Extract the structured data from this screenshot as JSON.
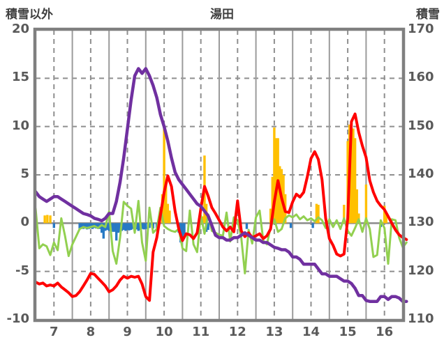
{
  "header": {
    "left_axis_title": "積雪以外",
    "title": "湯田",
    "right_axis_title": "積雪"
  },
  "chart_data": {
    "type": "line+bar",
    "title": "湯田",
    "left_axis": {
      "label": "積雪以外",
      "min": -10,
      "max": 20,
      "ticks": [
        20,
        15,
        10,
        5,
        0,
        -5,
        -10
      ]
    },
    "right_axis": {
      "label": "積雪",
      "min": 110,
      "max": 170,
      "ticks": [
        170,
        160,
        150,
        140,
        130,
        120,
        110
      ]
    },
    "x_axis": {
      "min": 6.5,
      "max": 16.5,
      "tick_labels": [
        7,
        8,
        9,
        10,
        11,
        12,
        13,
        14,
        15,
        16
      ],
      "solid_gridlines": [
        7.5,
        8.5,
        9.5,
        10.5,
        11.5,
        12.5,
        13.5,
        14.5,
        15.5
      ],
      "dashed_gridlines": [
        7,
        8,
        9,
        10,
        11,
        12,
        13,
        14,
        15,
        16
      ]
    },
    "grid": {
      "dashed_h_levels": [
        15,
        10,
        5,
        -5
      ],
      "zero_line": 0
    },
    "colors": {
      "purple": "#7030a0",
      "red": "#ff0000",
      "green": "#92d050",
      "orange": "#ffc000",
      "blue": "#2779c4",
      "frame": "#7f7f7f",
      "grid": "#8f8f8f",
      "text": "#595959"
    },
    "x_start": 6.5,
    "x_step": 0.1,
    "series": [
      {
        "name": "purple-line-snow-depth",
        "type": "line",
        "axis": "right",
        "color_key": "purple",
        "width": 4.5,
        "values": [
          136.5,
          135.5,
          135,
          134.5,
          135,
          135.5,
          135.5,
          135,
          134.5,
          134,
          133.5,
          133,
          132.5,
          132,
          131.8,
          131.5,
          131,
          130.8,
          130.5,
          131,
          132,
          132,
          134.5,
          138.5,
          143.5,
          149.5,
          155.5,
          160.5,
          162,
          161,
          162,
          160.5,
          158.5,
          156,
          152.5,
          150,
          147,
          143.5,
          140.5,
          139,
          138,
          137,
          136,
          135,
          134,
          133.5,
          132.5,
          131.5,
          129.5,
          127.5,
          127,
          127,
          126.5,
          126.5,
          127,
          127,
          127.5,
          128,
          127.5,
          127,
          126.5,
          126.5,
          126,
          126,
          125.5,
          125,
          124.8,
          124.5,
          124.5,
          124,
          123,
          123,
          122.5,
          121.5,
          121.5,
          121.5,
          121.5,
          120.5,
          119.5,
          119.5,
          119,
          119,
          119,
          118.5,
          118,
          118,
          117.5,
          116.5,
          115,
          115,
          114,
          113.8,
          113.8,
          113.8,
          114.8,
          114.8,
          114.2,
          114.8,
          114.8,
          114.5,
          113.8,
          113.8
        ]
      },
      {
        "name": "red-line",
        "type": "line",
        "axis": "left",
        "color_key": "red",
        "width": 4,
        "values": [
          -6.1,
          -6.3,
          -6.2,
          -6.5,
          -6.4,
          -6.5,
          -6.2,
          -6.6,
          -6.9,
          -7.2,
          -7.6,
          -7.5,
          -7.1,
          -6.5,
          -5.9,
          -5.2,
          -5.3,
          -5.7,
          -6.1,
          -6.5,
          -7.1,
          -6.9,
          -6.5,
          -5.9,
          -5.5,
          -5.7,
          -5.5,
          -5.6,
          -5.5,
          -6.3,
          -7.6,
          -8.0,
          -3.0,
          -1.5,
          0.8,
          3.2,
          4.9,
          3.8,
          1.2,
          -0.6,
          -1.8,
          -1.1,
          -1.2,
          -1.6,
          -1.0,
          1.5,
          3.8,
          2.8,
          1.6,
          1.0,
          0.3,
          -0.4,
          -0.8,
          -0.4,
          -0.9,
          2.3,
          -0.8,
          -1.4,
          -1.0,
          -1.5,
          -1.3,
          -1.1,
          -1.6,
          -1.3,
          -0.6,
          2.2,
          4.4,
          2.6,
          1.2,
          1.1,
          2.2,
          3.0,
          2.7,
          3.2,
          4.8,
          6.7,
          7.4,
          6.6,
          4.5,
          0.5,
          -1.6,
          -2.3,
          -3.2,
          -3.4,
          -3.2,
          0.5,
          10.5,
          11.3,
          9.4,
          8.0,
          6.8,
          4.4,
          3.2,
          2.3,
          1.8,
          1.4,
          0.7,
          0.0,
          -0.7,
          -1.2,
          -1.5,
          -1.7
        ]
      },
      {
        "name": "green-line",
        "type": "line",
        "axis": "left",
        "color_key": "green",
        "width": 3,
        "values": [
          1.5,
          -2.6,
          -2.2,
          -2.4,
          -3.3,
          -2.0,
          -2.8,
          0.5,
          -1.3,
          -3.4,
          -2.2,
          -1.4,
          -0.6,
          -0.4,
          -0.5,
          -0.4,
          -0.3,
          -0.5,
          -0.2,
          -0.4,
          1.2,
          -2.9,
          -4.2,
          -1.5,
          2.2,
          1.8,
          1.5,
          -1.0,
          2.3,
          -2.0,
          -3.9,
          1.6,
          -1.0,
          -0.6,
          1.6,
          -0.3,
          -0.6,
          -0.8,
          -0.9,
          -0.6,
          -2.6,
          -2.9,
          1.3,
          -2.2,
          -3.0,
          0.8,
          -1.1,
          0.9,
          -0.8,
          -1.0,
          -1.2,
          -1.3,
          1.1,
          -1.9,
          0.6,
          0.3,
          -1.5,
          -5.2,
          -0.7,
          -2.1,
          0.6,
          1.3,
          -1.8,
          -2.2,
          -0.4,
          0.4,
          -0.9,
          -0.6,
          0.5,
          0.8,
          0.6,
          0.9,
          0.4,
          0.7,
          0.3,
          0.5,
          0.2,
          0.6,
          0.3,
          -0.5,
          0.4,
          -0.4,
          0.3,
          -0.6,
          0.5,
          -0.8,
          -1.3,
          -0.5,
          0.4,
          -0.9,
          0.5,
          -0.6,
          -3.5,
          -3.3,
          0.3,
          -0.5,
          -4.2,
          0.4,
          0.3,
          -1.5,
          -2.5,
          -2.0
        ]
      },
      {
        "name": "orange-bars",
        "type": "bar",
        "axis": "left",
        "color_key": "orange",
        "bar_width": 3.4,
        "points": [
          [
            6.75,
            0.8
          ],
          [
            6.82,
            0.85
          ],
          [
            6.9,
            0.8
          ],
          [
            9.95,
            3.0
          ],
          [
            10.0,
            9.9
          ],
          [
            10.05,
            4.3
          ],
          [
            10.1,
            2.0
          ],
          [
            10.15,
            1.3
          ],
          [
            11.05,
            0.7
          ],
          [
            11.1,
            7.0
          ],
          [
            11.15,
            2.0
          ],
          [
            12.9,
            1.5
          ],
          [
            12.95,
            4.8
          ],
          [
            13.0,
            9.9
          ],
          [
            13.05,
            8.8
          ],
          [
            13.1,
            8.8
          ],
          [
            13.15,
            5.9
          ],
          [
            13.2,
            5.6
          ],
          [
            13.25,
            5.0
          ],
          [
            13.3,
            3.0
          ],
          [
            14.15,
            2.0
          ],
          [
            14.2,
            1.9
          ],
          [
            14.9,
            1.9
          ],
          [
            15.0,
            8.5
          ],
          [
            15.05,
            10.2
          ],
          [
            15.1,
            10.0
          ],
          [
            15.15,
            9.8
          ],
          [
            15.2,
            8.8
          ],
          [
            15.25,
            3.5
          ],
          [
            15.3,
            1.0
          ],
          [
            15.5,
            4.0
          ],
          [
            16.0,
            1.8
          ],
          [
            16.05,
            1.0
          ]
        ]
      },
      {
        "name": "blue-bars",
        "type": "bar",
        "axis": "left",
        "color_key": "blue",
        "bar_width": 3.4,
        "points": [
          [
            7.0,
            -0.5
          ],
          [
            7.7,
            -0.6
          ],
          [
            7.75,
            -0.55
          ],
          [
            7.8,
            -0.6
          ],
          [
            7.85,
            -0.5
          ],
          [
            7.9,
            -0.65
          ],
          [
            7.95,
            -0.6
          ],
          [
            8.0,
            -0.55
          ],
          [
            8.05,
            -0.6
          ],
          [
            8.1,
            -0.5
          ],
          [
            8.15,
            -0.55
          ],
          [
            8.2,
            -0.6
          ],
          [
            8.25,
            -0.6
          ],
          [
            8.3,
            -1.0
          ],
          [
            8.35,
            -1.6
          ],
          [
            8.4,
            -0.8
          ],
          [
            8.45,
            -0.7
          ],
          [
            8.5,
            -0.8
          ],
          [
            8.55,
            -0.7
          ],
          [
            8.6,
            -0.9
          ],
          [
            8.65,
            -0.9
          ],
          [
            8.7,
            -1.8
          ],
          [
            8.75,
            -1.0
          ],
          [
            8.8,
            -0.9
          ],
          [
            8.85,
            -0.8
          ],
          [
            8.9,
            -0.7
          ],
          [
            8.95,
            -0.8
          ],
          [
            9.0,
            -0.7
          ],
          [
            9.05,
            -0.75
          ],
          [
            9.1,
            -0.7
          ],
          [
            9.15,
            -0.6
          ],
          [
            9.2,
            -0.7
          ],
          [
            9.25,
            -0.65
          ],
          [
            9.3,
            -0.8
          ],
          [
            9.35,
            -0.7
          ],
          [
            9.4,
            -0.6
          ],
          [
            9.45,
            -0.65
          ],
          [
            9.5,
            -0.6
          ],
          [
            9.6,
            -0.5
          ],
          [
            9.7,
            -0.55
          ],
          [
            9.8,
            -0.5
          ],
          [
            10.4,
            -1.0
          ],
          [
            10.45,
            -2.0
          ],
          [
            10.5,
            -1.6
          ],
          [
            10.55,
            -1.2
          ],
          [
            11.15,
            -0.9
          ],
          [
            11.2,
            -0.7
          ],
          [
            12.25,
            -0.6
          ],
          [
            13.45,
            -0.5
          ],
          [
            14.05,
            -0.5
          ],
          [
            15.9,
            -0.4
          ]
        ]
      }
    ]
  }
}
